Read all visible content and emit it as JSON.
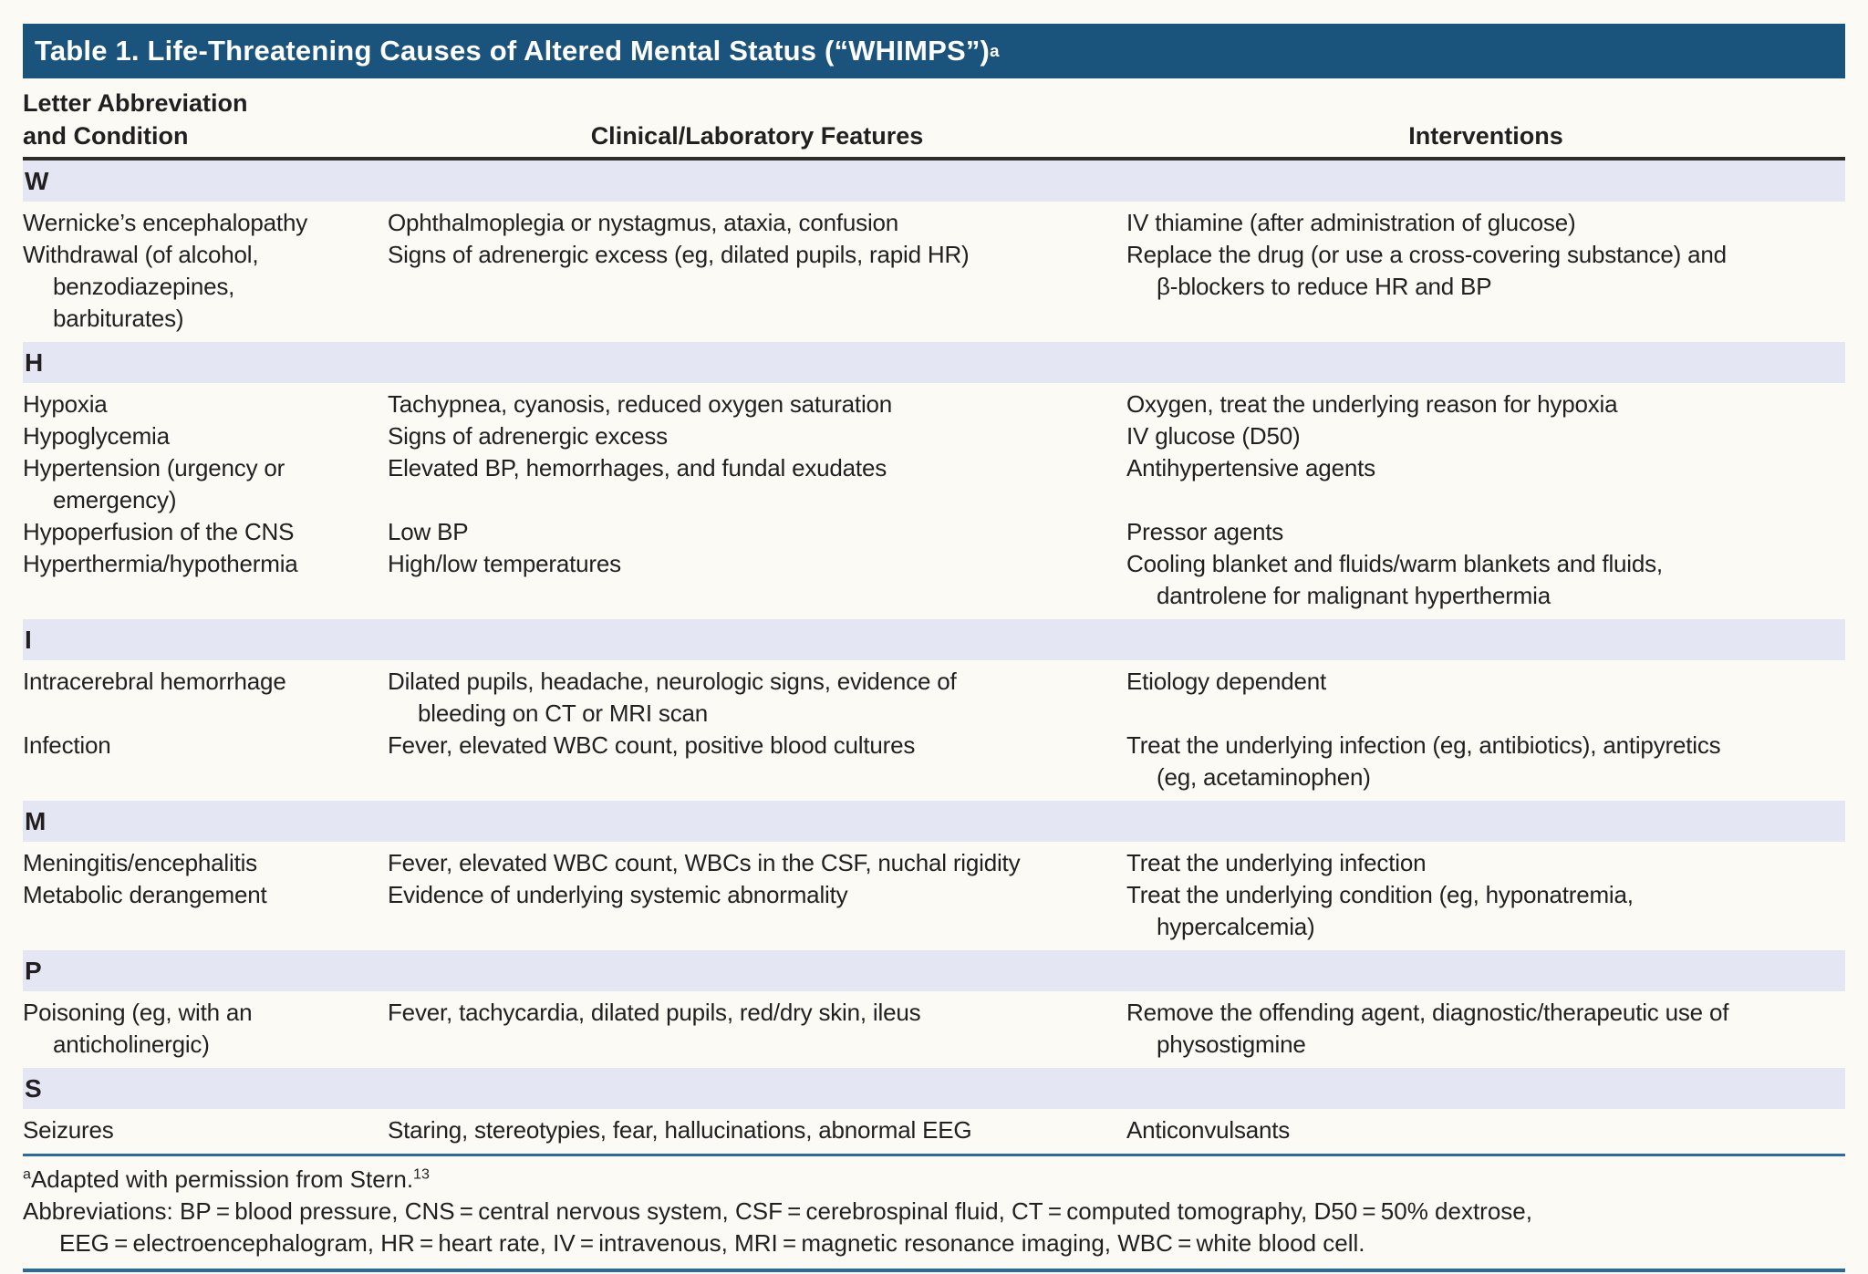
{
  "title": {
    "text": "Table 1. Life-Threatening Causes of Altered Mental Status (“WHIMPS”)",
    "marker": "a"
  },
  "columns": {
    "condition": "Letter Abbreviation\nand Condition",
    "features": "Clinical/Laboratory Features",
    "interventions": "Interventions"
  },
  "sections": [
    {
      "letter": "W",
      "rows": [
        {
          "condition": "Wernicke’s encephalopathy",
          "features": "Ophthalmoplegia or nystagmus, ataxia, confusion",
          "interventions": "IV thiamine (after administration of glucose)"
        },
        {
          "condition": "Withdrawal (of alcohol,\nbenzodiazepines,\nbarbiturates)",
          "features": "Signs of adrenergic excess (eg, dilated pupils, rapid HR)",
          "interventions": "Replace the drug (or use a cross-covering substance) and\nβ-blockers to reduce HR and BP"
        }
      ]
    },
    {
      "letter": "H",
      "rows": [
        {
          "condition": "Hypoxia",
          "features": "Tachypnea, cyanosis, reduced oxygen saturation",
          "interventions": "Oxygen, treat the underlying reason for hypoxia"
        },
        {
          "condition": "Hypoglycemia",
          "features": "Signs of adrenergic excess",
          "interventions": "IV glucose (D50)"
        },
        {
          "condition": "Hypertension (urgency or\nemergency)",
          "features": "Elevated BP, hemorrhages, and fundal exudates",
          "interventions": "Antihypertensive agents"
        },
        {
          "condition": "Hypoperfusion of the CNS",
          "features": "Low BP",
          "interventions": "Pressor agents"
        },
        {
          "condition": "Hyperthermia/hypothermia",
          "features": "High/low temperatures",
          "interventions": "Cooling blanket and fluids/warm blankets and fluids,\ndantrolene for malignant hyperthermia"
        }
      ]
    },
    {
      "letter": "I",
      "rows": [
        {
          "condition": "Intracerebral hemorrhage",
          "features": "Dilated pupils, headache, neurologic signs, evidence of\nbleeding on CT or MRI scan",
          "interventions": "Etiology dependent"
        },
        {
          "condition": "Infection",
          "features": "Fever, elevated WBC count, positive blood cultures",
          "interventions": "Treat the underlying infection (eg, antibiotics), antipyretics\n(eg, acetaminophen)"
        }
      ]
    },
    {
      "letter": "M",
      "rows": [
        {
          "condition": "Meningitis/encephalitis",
          "features": "Fever, elevated WBC count, WBCs in the CSF, nuchal rigidity",
          "interventions": "Treat the underlying infection"
        },
        {
          "condition": "Metabolic derangement",
          "features": "Evidence of underlying systemic abnormality",
          "interventions": "Treat the underlying condition (eg, hyponatremia,\nhypercalcemia)"
        }
      ]
    },
    {
      "letter": "P",
      "rows": [
        {
          "condition": "Poisoning (eg, with an\nanticholinergic)",
          "features": "Fever, tachycardia, dilated pupils, red/dry skin, ileus",
          "interventions": "Remove the offending agent, diagnostic/therapeutic use of\nphysostigmine"
        }
      ]
    },
    {
      "letter": "S",
      "rows": [
        {
          "condition": "Seizures",
          "features": "Staring, stereotypies, fear, hallucinations, abnormal EEG",
          "interventions": "Anticonvulsants"
        }
      ]
    }
  ],
  "footnote": {
    "marker": "a",
    "text": "Adapted with permission from Stern.",
    "ref": "13"
  },
  "abbreviations": {
    "line1": "Abbreviations: BP = blood pressure, CNS = central nervous system, CSF = cerebrospinal fluid, CT = computed tomography, D50 = 50% dextrose,",
    "line2": "EEG = electroencephalogram, HR = heart rate, IV = intravenous, MRI = magnetic resonance imaging, WBC = white blood cell."
  },
  "colors": {
    "header_bar": "#1A537C",
    "section_band": "#E4E7F3",
    "rule_blue": "#2B6A9E",
    "rule_dark": "#2D2B28",
    "text": "#231F20",
    "page_bg": "#FBFAF5"
  }
}
